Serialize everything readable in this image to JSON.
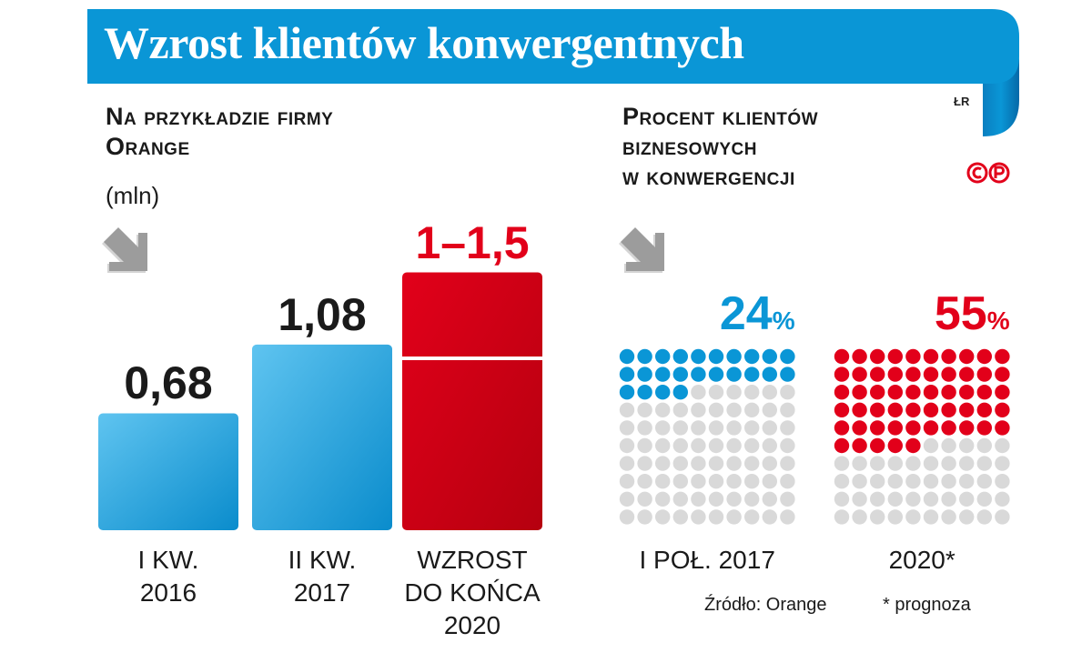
{
  "title": "Wzrost klientów konwergentnych",
  "logo": {
    "mark": "ŁR",
    "copyright": "©P"
  },
  "colors": {
    "blue": "#0a96d6",
    "blue_light": "#5fc4f0",
    "red": "#e2001a",
    "red_dark": "#b5000f",
    "gray": "#d9d9d9"
  },
  "left_panel": {
    "title_lines": [
      "Na przykładzie firmy",
      "Orange"
    ],
    "unit": "(mln)",
    "icon": "arrow-down-right-icon"
  },
  "right_panel": {
    "title_lines": [
      "Procent klientów",
      "biznesowych",
      "w konwergencji"
    ],
    "icon": "arrow-down-right-icon"
  },
  "chart_data": [
    {
      "type": "bar",
      "categories": [
        [
          "I KW.",
          "2016"
        ],
        [
          "II KW.",
          "2017"
        ],
        [
          "WZROST",
          "DO KOŃCA",
          "2020"
        ]
      ],
      "value_labels": [
        "0,68",
        "1,08",
        "1–1,5"
      ],
      "values": [
        0.68,
        1.08,
        1.5
      ],
      "range_low": [
        null,
        null,
        1.0
      ],
      "colors": [
        "#0a96d6",
        "#0a96d6",
        "#e2001a"
      ],
      "title": "",
      "ylabel": "(mln)"
    },
    {
      "type": "waffle",
      "grid": [
        10,
        10
      ],
      "series": [
        {
          "label": "I POŁ. 2017",
          "percent": 24,
          "value_label": "24",
          "color": "#0a96d6"
        },
        {
          "label": "2020*",
          "percent": 55,
          "value_label": "55",
          "color": "#e2001a"
        }
      ],
      "percent_sign": "%"
    }
  ],
  "footer": {
    "source": "Źródło: Orange",
    "note": "* prognoza"
  }
}
